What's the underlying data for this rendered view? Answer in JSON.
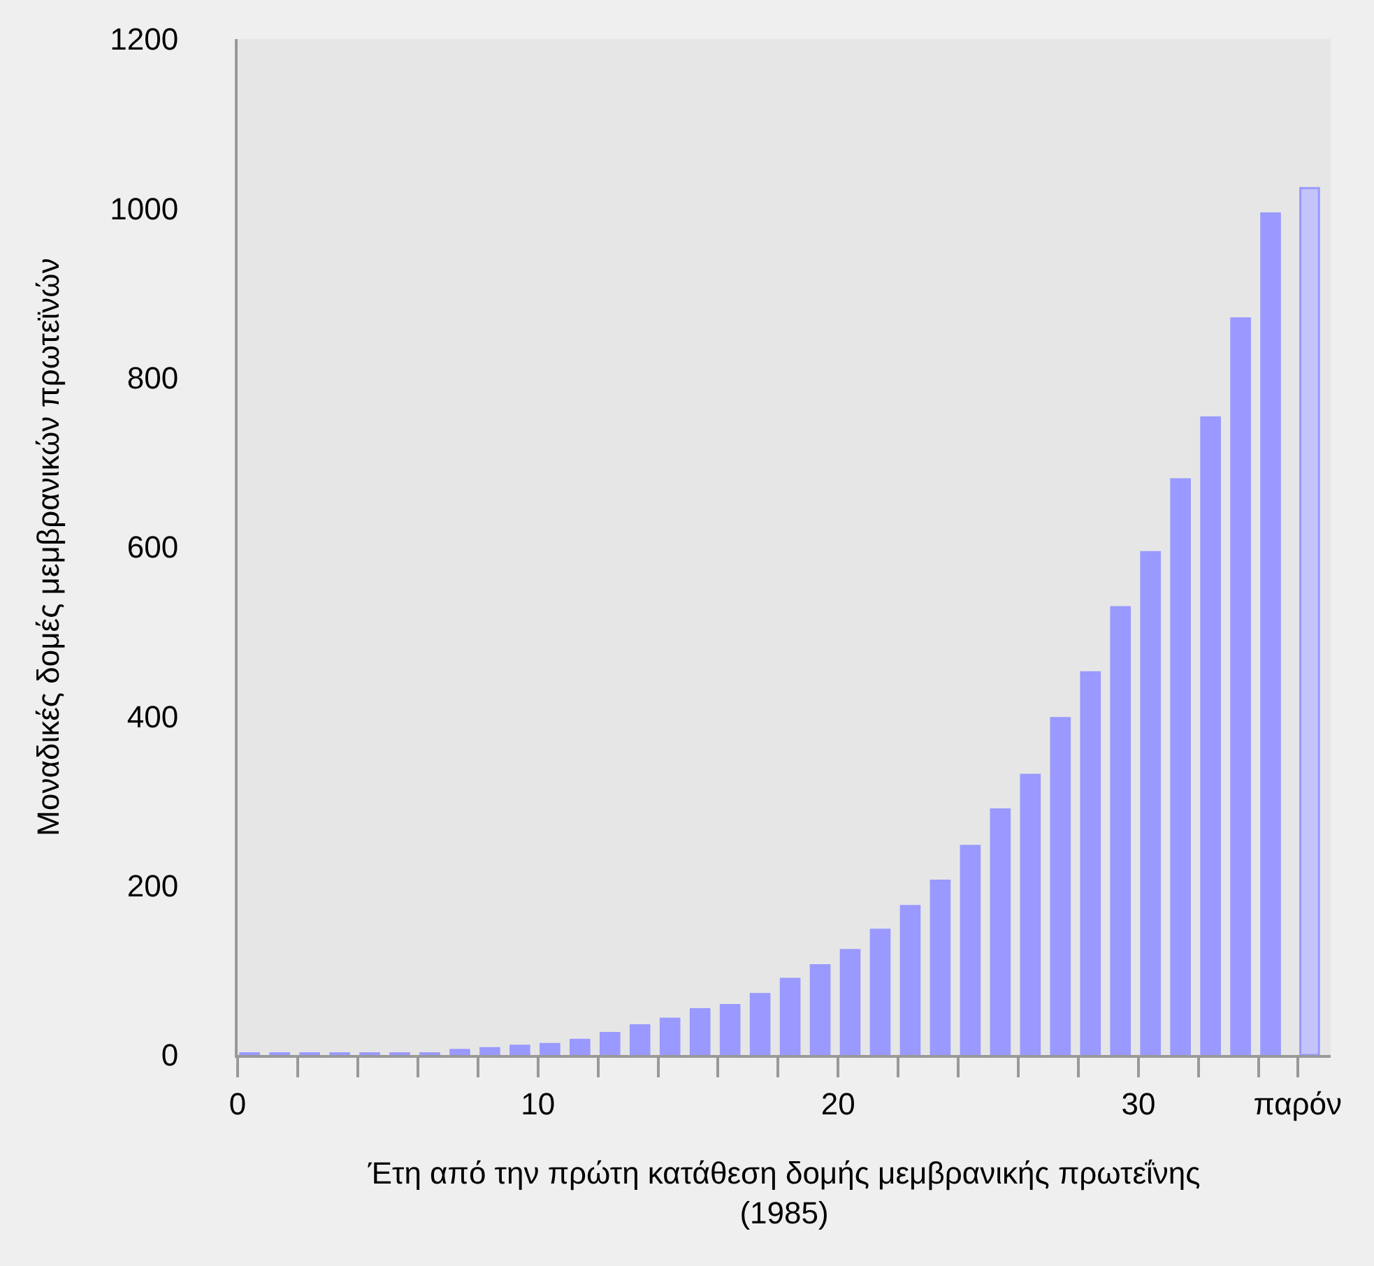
{
  "chart_data": {
    "type": "bar",
    "xlabel": "Έτη από την πρώτη κατάθεση δομής μεμβρανικής πρωτεΐνης\n(1985)",
    "ylabel": "Μοναδικές δομές μεμβρανικών πρωτεϊνών",
    "x": [
      0.4,
      1.4,
      2.4,
      3.4,
      4.4,
      5.4,
      6.4,
      7.4,
      8.4,
      9.4,
      10.4,
      11.4,
      12.4,
      13.4,
      14.4,
      15.4,
      16.4,
      17.4,
      18.4,
      19.4,
      20.4,
      21.4,
      22.4,
      23.4,
      24.4,
      25.4,
      26.4,
      27.4,
      28.4,
      29.4,
      30.4,
      31.4,
      32.4,
      33.4,
      34.4,
      35.7
    ],
    "values": [
      2,
      2,
      2,
      2,
      2,
      2,
      2,
      6,
      8,
      11,
      13,
      18,
      26,
      35,
      43,
      54,
      59,
      72,
      90,
      106,
      124,
      148,
      176,
      206,
      247,
      290,
      331,
      398,
      452,
      529,
      594,
      680,
      753,
      870,
      994,
      1024
    ],
    "colors": [
      "#9999ff",
      "#9999ff",
      "#9999ff",
      "#9999ff",
      "#9999ff",
      "#9999ff",
      "#9999ff",
      "#9999ff",
      "#9999ff",
      "#9999ff",
      "#9999ff",
      "#9999ff",
      "#9999ff",
      "#9999ff",
      "#9999ff",
      "#9999ff",
      "#9999ff",
      "#9999ff",
      "#9999ff",
      "#9999ff",
      "#9999ff",
      "#9999ff",
      "#9999ff",
      "#9999ff",
      "#9999ff",
      "#9999ff",
      "#9999ff",
      "#9999ff",
      "#9999ff",
      "#9999ff",
      "#9999ff",
      "#9999ff",
      "#9999ff",
      "#9999ff",
      "#9999ff",
      "#c4c4fa"
    ],
    "xlim": [
      0,
      36.4
    ],
    "xticks": [
      0,
      {
        "value": 2,
        "label": null
      },
      {
        "value": 4,
        "label": null
      },
      {
        "value": 6,
        "label": null
      },
      {
        "value": 8,
        "label": null
      },
      10,
      {
        "value": 12,
        "label": null
      },
      {
        "value": 14,
        "label": null
      },
      {
        "value": 16,
        "label": null
      },
      {
        "value": 18,
        "label": null
      },
      20,
      {
        "value": 22,
        "label": null
      },
      {
        "value": 24,
        "label": null
      },
      {
        "value": 26,
        "label": null
      },
      {
        "value": 28,
        "label": null
      },
      30,
      {
        "value": 32,
        "label": null
      },
      {
        "value": 34,
        "label": null
      },
      {
        "value": 35.3,
        "label": "παρόν"
      }
    ],
    "ylim": [
      0,
      1200
    ],
    "yticks": [
      0,
      200,
      400,
      600,
      800,
      1000,
      1200
    ],
    "grid": false
  }
}
